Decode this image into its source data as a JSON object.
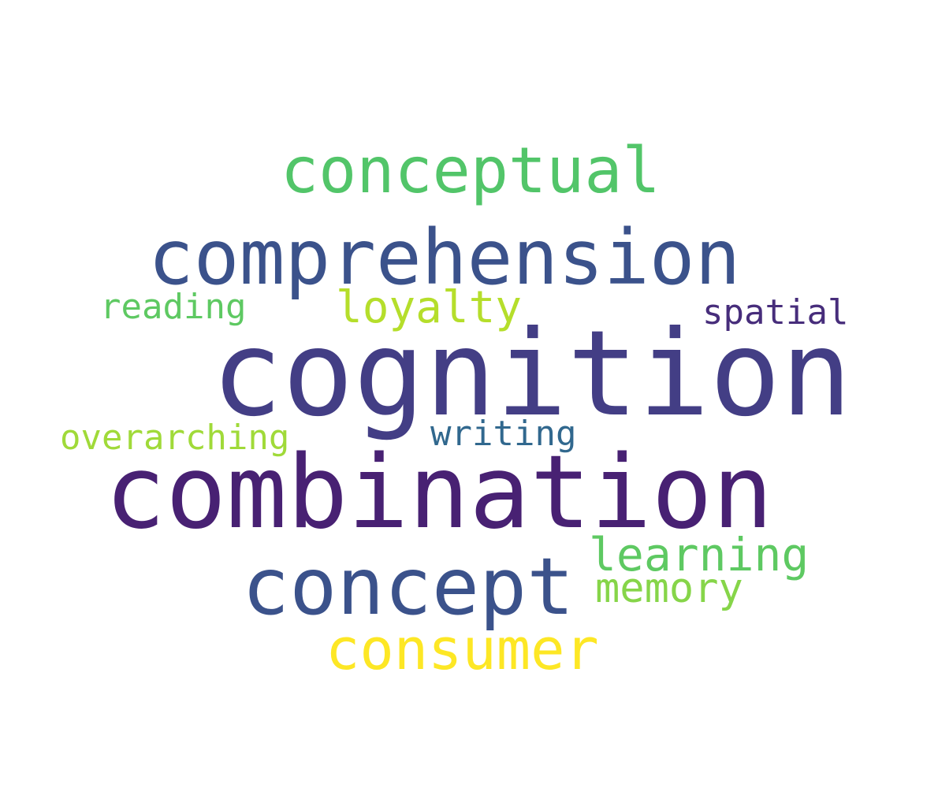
{
  "word_cloud": {
    "words": [
      {
        "id": "conceptual",
        "text": "conceptual",
        "color": "#52c569"
      },
      {
        "id": "comprehension",
        "text": "comprehension",
        "color": "#3b528b"
      },
      {
        "id": "reading",
        "text": "reading",
        "color": "#5ec962"
      },
      {
        "id": "loyalty",
        "text": "loyalty",
        "color": "#b5de2b"
      },
      {
        "id": "spatial",
        "text": "spatial",
        "color": "#472d7b"
      },
      {
        "id": "cognition",
        "text": "cognition",
        "color": "#433e85"
      },
      {
        "id": "overarching",
        "text": "overarching",
        "color": "#a0da39"
      },
      {
        "id": "writing",
        "text": "writing",
        "color": "#31688e"
      },
      {
        "id": "combination",
        "text": "combination",
        "color": "#482173"
      },
      {
        "id": "learning",
        "text": "learning",
        "color": "#5ec962"
      },
      {
        "id": "memory",
        "text": "memory",
        "color": "#86d549"
      },
      {
        "id": "concept",
        "text": "concept",
        "color": "#3b528b"
      },
      {
        "id": "consumer",
        "text": "consumer",
        "color": "#fde725"
      }
    ]
  }
}
